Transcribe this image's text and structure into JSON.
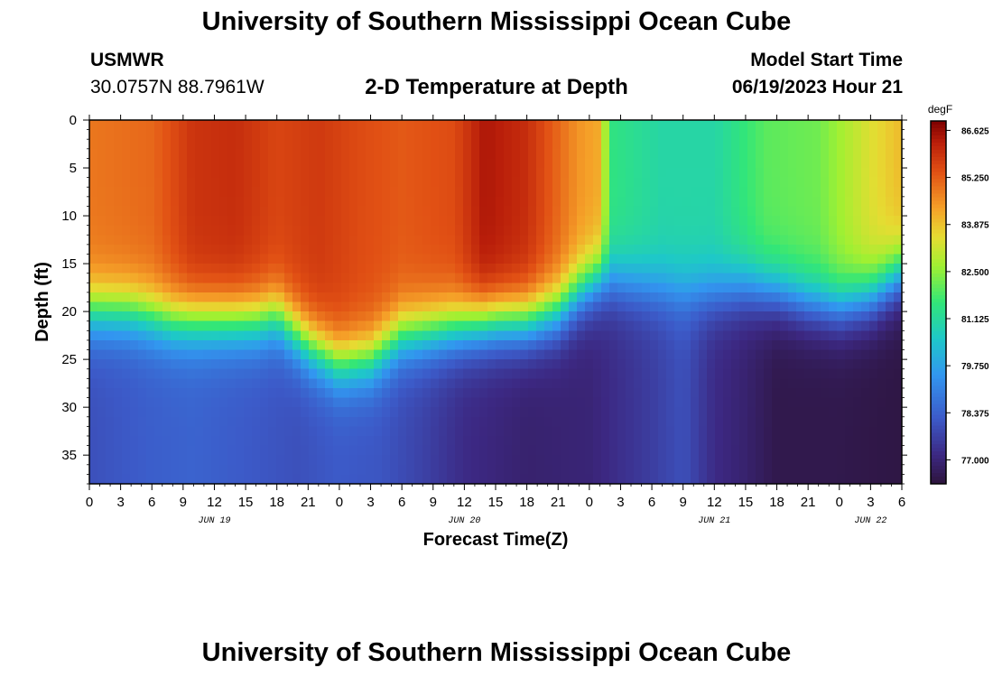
{
  "header": {
    "title": "University of Southern Mississippi Ocean Cube",
    "station": "USMWR",
    "coords": "30.0757N  88.7961W",
    "subtitle": "2-D Temperature at Depth",
    "model_start_label": "Model Start Time",
    "model_start_value": "06/19/2023 Hour 21",
    "footer_title": "University of Southern Mississippi Ocean Cube"
  },
  "chart_data": {
    "type": "heatmap",
    "title": "2-D Temperature at Depth",
    "xlabel": "Forecast Time(Z)",
    "ylabel": "Depth (ft)",
    "x_unit": "forecast hours from 06/19 00Z",
    "xlim": [
      0,
      78
    ],
    "ylim": [
      38,
      0
    ],
    "x_tick_values": [
      0,
      3,
      6,
      9,
      12,
      15,
      18,
      21,
      24,
      27,
      30,
      33,
      36,
      39,
      42,
      45,
      48,
      51,
      54,
      57,
      60,
      63,
      66,
      69,
      72,
      75,
      78
    ],
    "x_tick_labels": [
      "0",
      "3",
      "6",
      "9",
      "12",
      "15",
      "18",
      "21",
      "0",
      "3",
      "6",
      "9",
      "12",
      "15",
      "18",
      "21",
      "0",
      "3",
      "6",
      "9",
      "12",
      "15",
      "18",
      "21",
      "0",
      "3",
      "6"
    ],
    "day_labels": [
      {
        "x": 12,
        "label": "JUN 19"
      },
      {
        "x": 36,
        "label": "JUN 20"
      },
      {
        "x": 60,
        "label": "JUN 21"
      },
      {
        "x": 75,
        "label": "JUN 22"
      }
    ],
    "y_ticks": [
      0,
      5,
      10,
      15,
      20,
      25,
      30,
      35
    ],
    "colorbar": {
      "unit": "degF",
      "range": [
        76.3,
        86.9
      ],
      "tick_values": [
        86.625,
        85.25,
        83.875,
        82.5,
        81.125,
        79.75,
        78.375,
        77.0
      ],
      "tick_labels": [
        "86.625",
        "85.250",
        "83.875",
        "82.500",
        "81.125",
        "79.750",
        "78.375",
        "77.000"
      ]
    },
    "surface_temperature": {
      "x": [
        0,
        6,
        10,
        14,
        18,
        22,
        26,
        30,
        35,
        38,
        42,
        47,
        49,
        50,
        55,
        60,
        65,
        70,
        75,
        78
      ],
      "values": [
        84.9,
        85.1,
        85.9,
        86.0,
        85.6,
        85.8,
        85.5,
        85.3,
        85.5,
        86.4,
        86.0,
        84.5,
        84.2,
        81.5,
        81.0,
        81.0,
        82.0,
        82.2,
        83.4,
        84.0
      ]
    },
    "mixed_layer_depth_ft": {
      "x": [
        0,
        4,
        8,
        12,
        16,
        18,
        21,
        24,
        27,
        30,
        33,
        36,
        39,
        42,
        45,
        47,
        49,
        51,
        54,
        57,
        60,
        63,
        66,
        69,
        72,
        75,
        78
      ],
      "values": [
        20,
        20,
        21,
        21,
        21,
        20.5,
        23.5,
        25.5,
        25,
        22.5,
        22,
        21.5,
        21,
        21,
        20,
        18,
        16.5,
        17,
        17.5,
        18,
        18,
        17.5,
        18,
        19,
        19.5,
        18.5,
        16
      ]
    },
    "bottom_temperature": {
      "x": [
        0,
        6,
        10,
        15,
        20,
        24,
        28,
        32,
        36,
        42,
        48,
        54,
        57,
        60,
        63,
        66,
        72,
        78
      ],
      "values": [
        78.0,
        78.3,
        78.4,
        78.2,
        78.0,
        78.2,
        78.1,
        77.7,
        77.2,
        76.9,
        77.0,
        77.6,
        78.0,
        77.2,
        76.9,
        76.5,
        76.5,
        76.4
      ]
    }
  }
}
